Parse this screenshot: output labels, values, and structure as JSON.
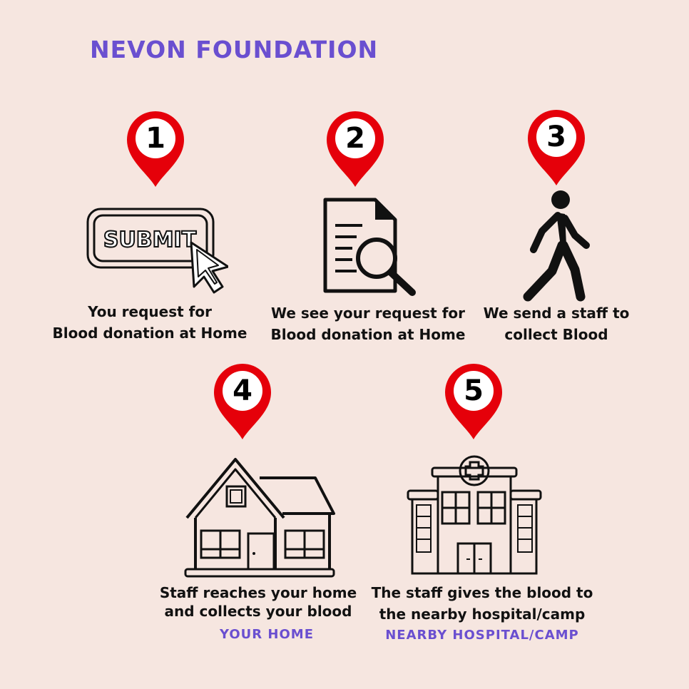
{
  "title": "NEVON FOUNDATION",
  "colors": {
    "background": "#f6e6e0",
    "accent": "#6a4fd0",
    "pin": "#e5000a"
  },
  "steps": [
    {
      "number": "1",
      "icon": "submit-button-cursor-icon",
      "lines": [
        "You request for",
        "Blood donation at Home"
      ]
    },
    {
      "number": "2",
      "icon": "document-search-icon",
      "lines": [
        "We see your request for",
        "Blood donation at Home"
      ]
    },
    {
      "number": "3",
      "icon": "walking-person-icon",
      "lines": [
        "We send a staff to",
        "collect Blood"
      ]
    },
    {
      "number": "4",
      "icon": "house-icon",
      "lines": [
        "Staff reaches your home",
        "and collects your blood"
      ],
      "tag": "YOUR HOME"
    },
    {
      "number": "5",
      "icon": "hospital-icon",
      "lines": [
        "The staff gives the blood to",
        "the nearby hospital/camp"
      ],
      "tag": "NEARBY HOSPITAL/CAMP"
    }
  ],
  "submit_text": "SUBMIT"
}
